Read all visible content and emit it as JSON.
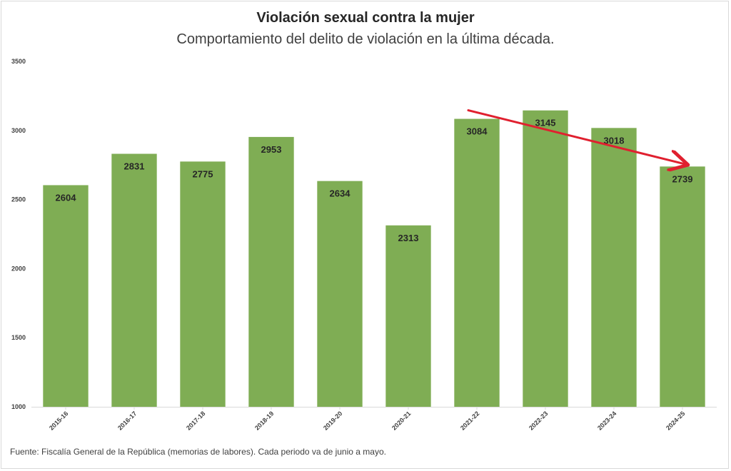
{
  "chart_data": {
    "type": "bar",
    "title": "Violación sexual contra la mujer",
    "subtitle": "Comportamiento del delito de violación en la última década.",
    "categories": [
      "2015-16",
      "2016-17",
      "2017-18",
      "2018-19",
      "2019-20",
      "2020-21",
      "2021-22",
      "2022-23",
      "2023-24",
      "2024-25"
    ],
    "values": [
      2604,
      2831,
      2775,
      2953,
      2634,
      2313,
      3084,
      3145,
      3018,
      2739
    ],
    "ylim": [
      1000,
      3500
    ],
    "yticks": [
      1000,
      1500,
      2000,
      2500,
      3000,
      3500
    ],
    "xlabel": "",
    "ylabel": "",
    "grid": false,
    "bar_color": "#7fad54",
    "annotations": [
      {
        "type": "trend-arrow",
        "from_category": "2021-22",
        "to_category": "2024-25",
        "color": "#e0202f"
      }
    ]
  },
  "source": "Fuente: Fiscalía General de la República (memorias de labores). Cada periodo va de junio a mayo."
}
